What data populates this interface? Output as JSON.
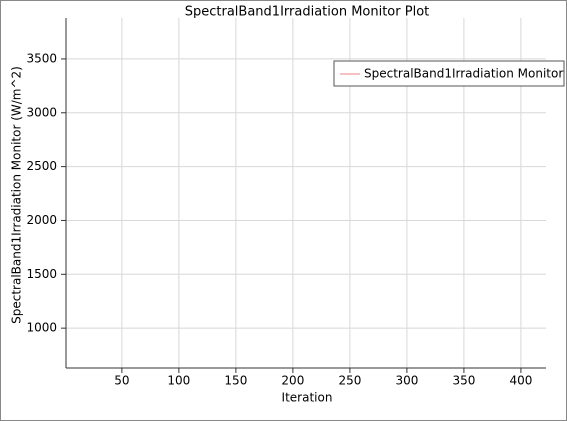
{
  "chart_data": {
    "type": "line",
    "title": "SpectralBand1Irradiation Monitor Plot",
    "xlabel": "Iteration",
    "ylabel": "SpectralBand1Irradiation Monitor (W/m^2)",
    "x": [],
    "series": [
      {
        "name": "SpectralBand1Irradiation Monitor",
        "color": "#f08080",
        "values": []
      }
    ],
    "xlim": [
      1,
      422
    ],
    "xticks": [
      50,
      100,
      150,
      200,
      250,
      300,
      350,
      400
    ],
    "ylim": [
      630,
      3880
    ],
    "yticks": [
      1000,
      1500,
      2000,
      2500,
      3000,
      3500
    ],
    "grid": true,
    "legend": "upper right"
  }
}
